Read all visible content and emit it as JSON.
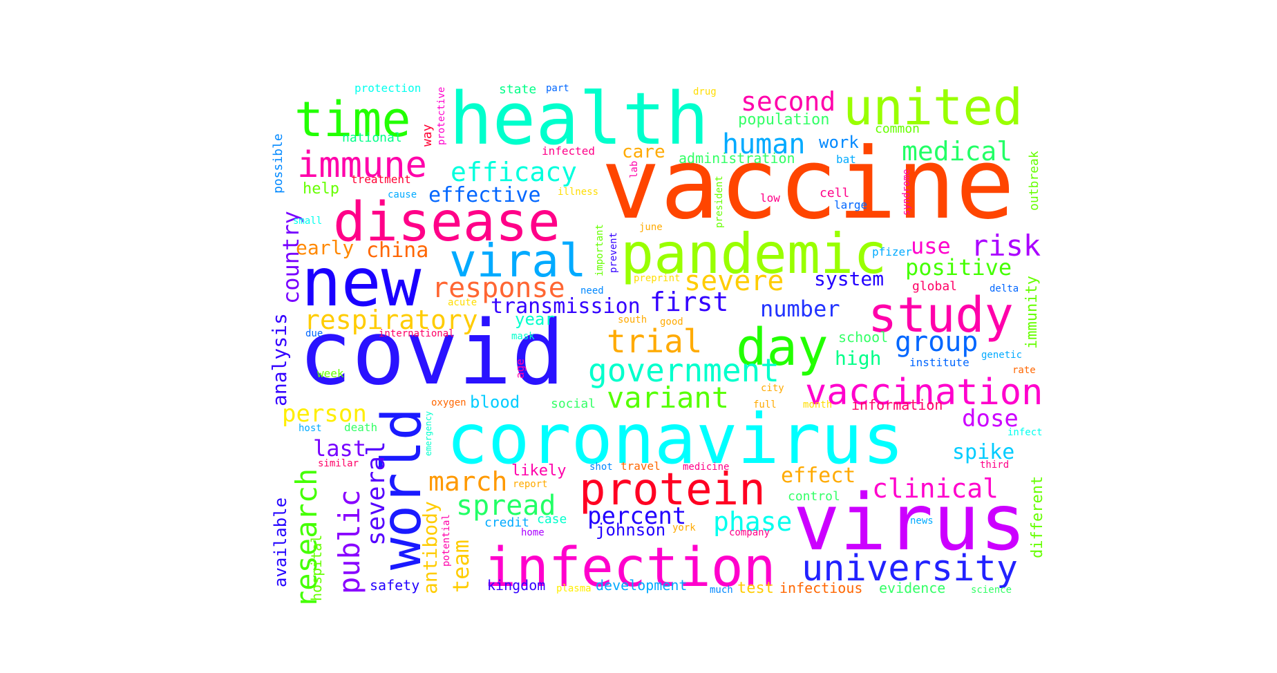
{
  "words": [
    {
      "text": "vaccine",
      "color": "#ff4500"
    },
    {
      "text": "covid",
      "color": "#2a12ff"
    },
    {
      "text": "coronavirus",
      "color": "#00ffff"
    },
    {
      "text": "virus",
      "color": "#cc00ff"
    },
    {
      "text": "health",
      "color": "#00ffcc"
    },
    {
      "text": "infection",
      "color": "#ff00cc"
    },
    {
      "text": "new",
      "color": "#1a00ff"
    },
    {
      "text": "world",
      "color": "#1a1aff"
    },
    {
      "text": "disease",
      "color": "#ff0088"
    },
    {
      "text": "pandemic",
      "color": "#99ff00"
    },
    {
      "text": "united",
      "color": "#99ff00"
    },
    {
      "text": "protein",
      "color": "#ff0022"
    },
    {
      "text": "study",
      "color": "#ff00aa"
    },
    {
      "text": "time",
      "color": "#22ff00"
    },
    {
      "text": "day",
      "color": "#22ff00"
    },
    {
      "text": "viral",
      "color": "#00aaff"
    },
    {
      "text": "immune",
      "color": "#ff00aa"
    },
    {
      "text": "university",
      "color": "#2222ff"
    },
    {
      "text": "vaccination",
      "color": "#ff00cc"
    },
    {
      "text": "government",
      "color": "#00ffcc"
    },
    {
      "text": "research",
      "color": "#44ff00"
    },
    {
      "text": "response",
      "color": "#ff6633"
    },
    {
      "text": "respiratory",
      "color": "#ffcc00"
    },
    {
      "text": "variant",
      "color": "#55ff00"
    },
    {
      "text": "trial",
      "color": "#ffaa00"
    },
    {
      "text": "efficacy",
      "color": "#00ffdd"
    },
    {
      "text": "second",
      "color": "#ff00aa"
    },
    {
      "text": "medical",
      "color": "#22ff66"
    },
    {
      "text": "human",
      "color": "#00aaff"
    },
    {
      "text": "severe",
      "color": "#ffcc00"
    },
    {
      "text": "risk",
      "color": "#aa00ff"
    },
    {
      "text": "clinical",
      "color": "#ff00cc"
    },
    {
      "text": "spread",
      "color": "#22ff66"
    },
    {
      "text": "public",
      "color": "#8800ff"
    },
    {
      "text": "march",
      "color": "#ff9900"
    },
    {
      "text": "effective",
      "color": "#0066ff"
    },
    {
      "text": "group",
      "color": "#0066ff"
    },
    {
      "text": "positive",
      "color": "#44ff00"
    },
    {
      "text": "country",
      "color": "#7700ff"
    },
    {
      "text": "several",
      "color": "#5500ff"
    },
    {
      "text": "first",
      "color": "#3300ff"
    },
    {
      "text": "transmission",
      "color": "#3300ff"
    },
    {
      "text": "number",
      "color": "#2233ff"
    },
    {
      "text": "person",
      "color": "#ffee00"
    },
    {
      "text": "phase",
      "color": "#00ffee"
    },
    {
      "text": "percent",
      "color": "#2200ff"
    },
    {
      "text": "dose",
      "color": "#cc00ff"
    },
    {
      "text": "spike",
      "color": "#00ccff"
    },
    {
      "text": "china",
      "color": "#ff6600"
    },
    {
      "text": "use",
      "color": "#ff00cc"
    },
    {
      "text": "last",
      "color": "#7700ff"
    },
    {
      "text": "analysis",
      "color": "#3300ff"
    },
    {
      "text": "team",
      "color": "#ffcc00"
    },
    {
      "text": "effect",
      "color": "#ffaa00"
    },
    {
      "text": "antibody",
      "color": "#ffcc00"
    },
    {
      "text": "system",
      "color": "#2200ff"
    },
    {
      "text": "johnson",
      "color": "#2200ff"
    },
    {
      "text": "early",
      "color": "#ff8800"
    },
    {
      "text": "high",
      "color": "#00ff88"
    },
    {
      "text": "immunity",
      "color": "#66ff00"
    },
    {
      "text": "available",
      "color": "#2200ff"
    },
    {
      "text": "different",
      "color": "#66ff00"
    },
    {
      "text": "care",
      "color": "#ffaa00"
    },
    {
      "text": "population",
      "color": "#33ff66"
    },
    {
      "text": "year",
      "color": "#00ffcc"
    },
    {
      "text": "blood",
      "color": "#00ccff"
    },
    {
      "text": "likely",
      "color": "#ff00aa"
    },
    {
      "text": "help",
      "color": "#66ff00"
    },
    {
      "text": "work",
      "color": "#0088ff"
    },
    {
      "text": "hospital",
      "color": "#66ff00"
    },
    {
      "text": "possible",
      "color": "#0088ff"
    },
    {
      "text": "outbreak",
      "color": "#66ff00"
    },
    {
      "text": "information",
      "color": "#ff0066"
    },
    {
      "text": "administration",
      "color": "#33ff66"
    },
    {
      "text": "development",
      "color": "#00aaff"
    },
    {
      "text": "infectious",
      "color": "#ff6600"
    },
    {
      "text": "evidence",
      "color": "#33ff66"
    },
    {
      "text": "test",
      "color": "#ffcc00"
    },
    {
      "text": "kingdom",
      "color": "#3300ff"
    },
    {
      "text": "safety",
      "color": "#2200ff"
    },
    {
      "text": "school",
      "color": "#33ff66"
    },
    {
      "text": "social",
      "color": "#33ff66"
    },
    {
      "text": "control",
      "color": "#33ff66"
    },
    {
      "text": "global",
      "color": "#ff0066"
    },
    {
      "text": "national",
      "color": "#00ff88"
    },
    {
      "text": "state",
      "color": "#00ff88"
    },
    {
      "text": "common",
      "color": "#66ff00"
    },
    {
      "text": "credit",
      "color": "#00aaff"
    },
    {
      "text": "case",
      "color": "#00ffcc"
    },
    {
      "text": "cell",
      "color": "#ff0088"
    },
    {
      "text": "large",
      "color": "#0066ff"
    },
    {
      "text": "bat",
      "color": "#00aaff"
    },
    {
      "text": "week",
      "color": "#66ff00"
    },
    {
      "text": "protection",
      "color": "#00ffee"
    },
    {
      "text": "part",
      "color": "#0066ff"
    },
    {
      "text": "drug",
      "color": "#ffdd00"
    },
    {
      "text": "infected",
      "color": "#ff0088"
    },
    {
      "text": "way",
      "color": "#ff0033"
    },
    {
      "text": "protective",
      "color": "#ff00cc"
    },
    {
      "text": "treatment",
      "color": "#ff0033"
    },
    {
      "text": "cause",
      "color": "#00aaff"
    },
    {
      "text": "illness",
      "color": "#ffdd00"
    },
    {
      "text": "lab",
      "color": "#ff00aa"
    },
    {
      "text": "president",
      "color": "#66ff00"
    },
    {
      "text": "syndrome",
      "color": "#ff00aa"
    },
    {
      "text": "low",
      "color": "#ff0088"
    },
    {
      "text": "small",
      "color": "#00ffee"
    },
    {
      "text": "june",
      "color": "#ffaa00"
    },
    {
      "text": "important",
      "color": "#66ff00"
    },
    {
      "text": "prevent",
      "color": "#3300ff"
    },
    {
      "text": "preprint",
      "color": "#ffdd00"
    },
    {
      "text": "pfizer",
      "color": "#00aaff"
    },
    {
      "text": "need",
      "color": "#0088ff"
    },
    {
      "text": "acute",
      "color": "#ffdd00"
    },
    {
      "text": "delta",
      "color": "#0066ff"
    },
    {
      "text": "south",
      "color": "#ffaa00"
    },
    {
      "text": "good",
      "color": "#ffaa00"
    },
    {
      "text": "due",
      "color": "#0066ff"
    },
    {
      "text": "international",
      "color": "#ff0066"
    },
    {
      "text": "mask",
      "color": "#00ffcc"
    },
    {
      "text": "institute",
      "color": "#0066ff"
    },
    {
      "text": "genetic",
      "color": "#00aaff"
    },
    {
      "text": "rate",
      "color": "#ff6600"
    },
    {
      "text": "age",
      "color": "#ff00aa"
    },
    {
      "text": "city",
      "color": "#ffaa00"
    },
    {
      "text": "full",
      "color": "#ffaa00"
    },
    {
      "text": "month",
      "color": "#ffdd00"
    },
    {
      "text": "oxygen",
      "color": "#ff6600"
    },
    {
      "text": "emergency",
      "color": "#00ffcc"
    },
    {
      "text": "host",
      "color": "#00aaff"
    },
    {
      "text": "death",
      "color": "#33ff66"
    },
    {
      "text": "infect",
      "color": "#00ffee"
    },
    {
      "text": "similar",
      "color": "#ff0066"
    },
    {
      "text": "shot",
      "color": "#0088ff"
    },
    {
      "text": "travel",
      "color": "#ff6600"
    },
    {
      "text": "medicine",
      "color": "#ff0088"
    },
    {
      "text": "third",
      "color": "#ff0088"
    },
    {
      "text": "report",
      "color": "#ffaa00"
    },
    {
      "text": "potential",
      "color": "#ff00aa"
    },
    {
      "text": "home",
      "color": "#aa00ff"
    },
    {
      "text": "york",
      "color": "#ffaa00"
    },
    {
      "text": "company",
      "color": "#ff0088"
    },
    {
      "text": "news",
      "color": "#00aaff"
    },
    {
      "text": "plasma",
      "color": "#ffee00"
    },
    {
      "text": "much",
      "color": "#0088ff"
    },
    {
      "text": "science",
      "color": "#33ff66"
    }
  ]
}
